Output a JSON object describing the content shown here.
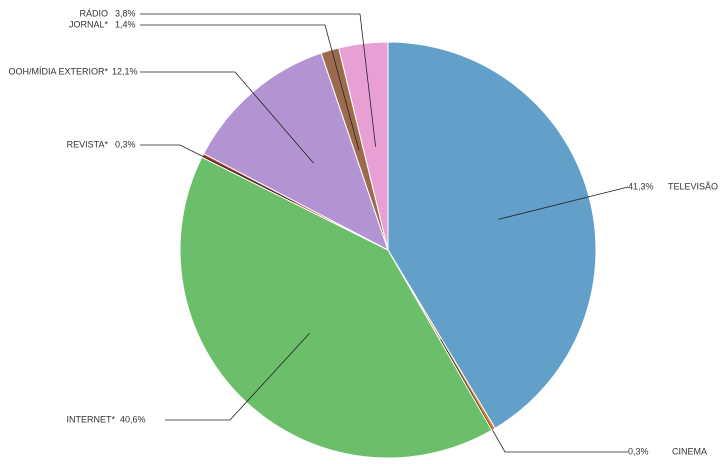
{
  "chart_data": {
    "type": "pie",
    "categories": [
      "TELEVISÃO",
      "CINEMA",
      "INTERNET*",
      "REVISTA*",
      "OOH/MÍDIA EXTERIOR*",
      "JORNAL*",
      "RÁDIO"
    ],
    "values": [
      41.3,
      0.3,
      40.6,
      0.3,
      12.1,
      1.4,
      3.8
    ],
    "value_labels": [
      "41,3%",
      "0,3%",
      "40,6%",
      "0,3%",
      "12,1%",
      "1,4%",
      "3,8%"
    ],
    "colors": [
      "#62a0c9",
      "#d9822b",
      "#6bbf6a",
      "#b03a2e",
      "#b394d2",
      "#9c6b4e",
      "#e8a0d4"
    ]
  }
}
